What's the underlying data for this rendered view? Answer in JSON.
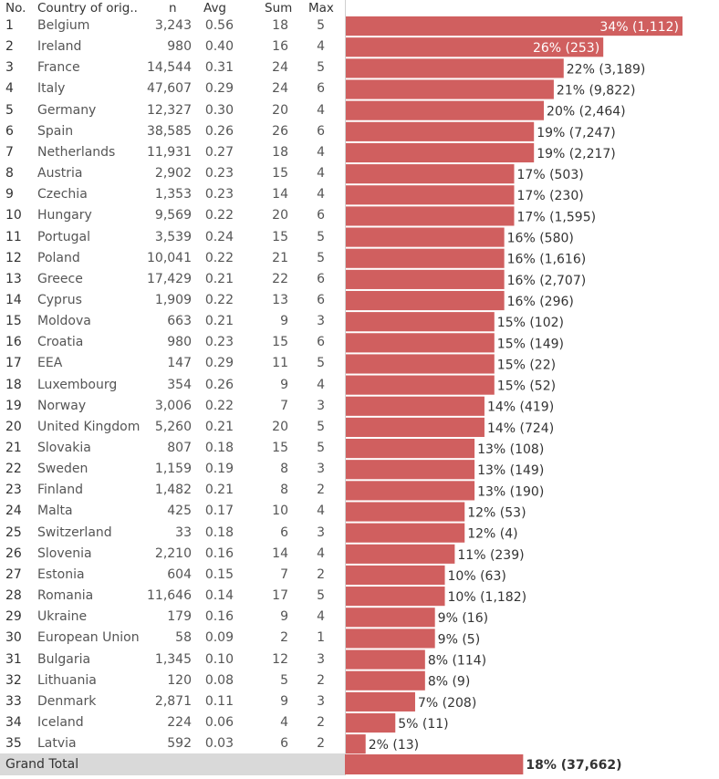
{
  "headers": {
    "no": "No.",
    "country": "Country of orig..",
    "n": "n",
    "avg": "Avg",
    "sum": "Sum",
    "max": "Max"
  },
  "grand_total": {
    "label": "Grand Total",
    "bar_label": "18% (37,662)",
    "pct": 18
  },
  "colors": {
    "bar": "#d05f5f",
    "grid": "#d0d0d0",
    "total_bg": "#d9d9d9"
  },
  "chart_data": {
    "type": "bar",
    "orientation": "horizontal",
    "rows": [
      {
        "no": "1",
        "country": "Belgium",
        "n": "3,243",
        "avg": "0.56",
        "sum": "18",
        "max": "5",
        "pct": 34,
        "label": "34% (1,112)"
      },
      {
        "no": "2",
        "country": "Ireland",
        "n": "980",
        "avg": "0.40",
        "sum": "16",
        "max": "4",
        "pct": 26,
        "label": "26% (253)"
      },
      {
        "no": "3",
        "country": "France",
        "n": "14,544",
        "avg": "0.31",
        "sum": "24",
        "max": "5",
        "pct": 22,
        "label": "22% (3,189)"
      },
      {
        "no": "4",
        "country": "Italy",
        "n": "47,607",
        "avg": "0.29",
        "sum": "24",
        "max": "6",
        "pct": 21,
        "label": "21% (9,822)"
      },
      {
        "no": "5",
        "country": "Germany",
        "n": "12,327",
        "avg": "0.30",
        "sum": "20",
        "max": "4",
        "pct": 20,
        "label": "20% (2,464)"
      },
      {
        "no": "6",
        "country": "Spain",
        "n": "38,585",
        "avg": "0.26",
        "sum": "26",
        "max": "6",
        "pct": 19,
        "label": "19% (7,247)"
      },
      {
        "no": "7",
        "country": "Netherlands",
        "n": "11,931",
        "avg": "0.27",
        "sum": "18",
        "max": "4",
        "pct": 19,
        "label": "19% (2,217)"
      },
      {
        "no": "8",
        "country": "Austria",
        "n": "2,902",
        "avg": "0.23",
        "sum": "15",
        "max": "4",
        "pct": 17,
        "label": "17% (503)"
      },
      {
        "no": "9",
        "country": "Czechia",
        "n": "1,353",
        "avg": "0.23",
        "sum": "14",
        "max": "4",
        "pct": 17,
        "label": "17% (230)"
      },
      {
        "no": "10",
        "country": "Hungary",
        "n": "9,569",
        "avg": "0.22",
        "sum": "20",
        "max": "6",
        "pct": 17,
        "label": "17% (1,595)"
      },
      {
        "no": "11",
        "country": "Portugal",
        "n": "3,539",
        "avg": "0.24",
        "sum": "15",
        "max": "5",
        "pct": 16,
        "label": "16% (580)"
      },
      {
        "no": "12",
        "country": "Poland",
        "n": "10,041",
        "avg": "0.22",
        "sum": "21",
        "max": "5",
        "pct": 16,
        "label": "16% (1,616)"
      },
      {
        "no": "13",
        "country": "Greece",
        "n": "17,429",
        "avg": "0.21",
        "sum": "22",
        "max": "6",
        "pct": 16,
        "label": "16% (2,707)"
      },
      {
        "no": "14",
        "country": "Cyprus",
        "n": "1,909",
        "avg": "0.22",
        "sum": "13",
        "max": "6",
        "pct": 16,
        "label": "16% (296)"
      },
      {
        "no": "15",
        "country": "Moldova",
        "n": "663",
        "avg": "0.21",
        "sum": "9",
        "max": "3",
        "pct": 15,
        "label": "15% (102)"
      },
      {
        "no": "16",
        "country": "Croatia",
        "n": "980",
        "avg": "0.23",
        "sum": "15",
        "max": "6",
        "pct": 15,
        "label": "15% (149)"
      },
      {
        "no": "17",
        "country": "EEA",
        "n": "147",
        "avg": "0.29",
        "sum": "11",
        "max": "5",
        "pct": 15,
        "label": "15% (22)"
      },
      {
        "no": "18",
        "country": "Luxembourg",
        "n": "354",
        "avg": "0.26",
        "sum": "9",
        "max": "4",
        "pct": 15,
        "label": "15% (52)"
      },
      {
        "no": "19",
        "country": "Norway",
        "n": "3,006",
        "avg": "0.22",
        "sum": "7",
        "max": "3",
        "pct": 14,
        "label": "14% (419)"
      },
      {
        "no": "20",
        "country": "United Kingdom",
        "n": "5,260",
        "avg": "0.21",
        "sum": "20",
        "max": "5",
        "pct": 14,
        "label": "14% (724)"
      },
      {
        "no": "21",
        "country": "Slovakia",
        "n": "807",
        "avg": "0.18",
        "sum": "15",
        "max": "5",
        "pct": 13,
        "label": "13% (108)"
      },
      {
        "no": "22",
        "country": "Sweden",
        "n": "1,159",
        "avg": "0.19",
        "sum": "8",
        "max": "3",
        "pct": 13,
        "label": "13% (149)"
      },
      {
        "no": "23",
        "country": "Finland",
        "n": "1,482",
        "avg": "0.21",
        "sum": "8",
        "max": "2",
        "pct": 13,
        "label": "13% (190)"
      },
      {
        "no": "24",
        "country": "Malta",
        "n": "425",
        "avg": "0.17",
        "sum": "10",
        "max": "4",
        "pct": 12,
        "label": "12% (53)"
      },
      {
        "no": "25",
        "country": "Switzerland",
        "n": "33",
        "avg": "0.18",
        "sum": "6",
        "max": "3",
        "pct": 12,
        "label": "12% (4)"
      },
      {
        "no": "26",
        "country": "Slovenia",
        "n": "2,210",
        "avg": "0.16",
        "sum": "14",
        "max": "4",
        "pct": 11,
        "label": "11% (239)"
      },
      {
        "no": "27",
        "country": "Estonia",
        "n": "604",
        "avg": "0.15",
        "sum": "7",
        "max": "2",
        "pct": 10,
        "label": "10% (63)"
      },
      {
        "no": "28",
        "country": "Romania",
        "n": "11,646",
        "avg": "0.14",
        "sum": "17",
        "max": "5",
        "pct": 10,
        "label": "10% (1,182)"
      },
      {
        "no": "29",
        "country": "Ukraine",
        "n": "179",
        "avg": "0.16",
        "sum": "9",
        "max": "4",
        "pct": 9,
        "label": "9% (16)"
      },
      {
        "no": "30",
        "country": "European Union",
        "n": "58",
        "avg": "0.09",
        "sum": "2",
        "max": "1",
        "pct": 9,
        "label": "9% (5)"
      },
      {
        "no": "31",
        "country": "Bulgaria",
        "n": "1,345",
        "avg": "0.10",
        "sum": "12",
        "max": "3",
        "pct": 8,
        "label": "8% (114)"
      },
      {
        "no": "32",
        "country": "Lithuania",
        "n": "120",
        "avg": "0.08",
        "sum": "5",
        "max": "2",
        "pct": 8,
        "label": "8% (9)"
      },
      {
        "no": "33",
        "country": "Denmark",
        "n": "2,871",
        "avg": "0.11",
        "sum": "9",
        "max": "3",
        "pct": 7,
        "label": "7% (208)"
      },
      {
        "no": "34",
        "country": "Iceland",
        "n": "224",
        "avg": "0.06",
        "sum": "4",
        "max": "2",
        "pct": 5,
        "label": "5% (11)"
      },
      {
        "no": "35",
        "country": "Latvia",
        "n": "592",
        "avg": "0.03",
        "sum": "6",
        "max": "2",
        "pct": 2,
        "label": "2% (13)"
      }
    ]
  }
}
